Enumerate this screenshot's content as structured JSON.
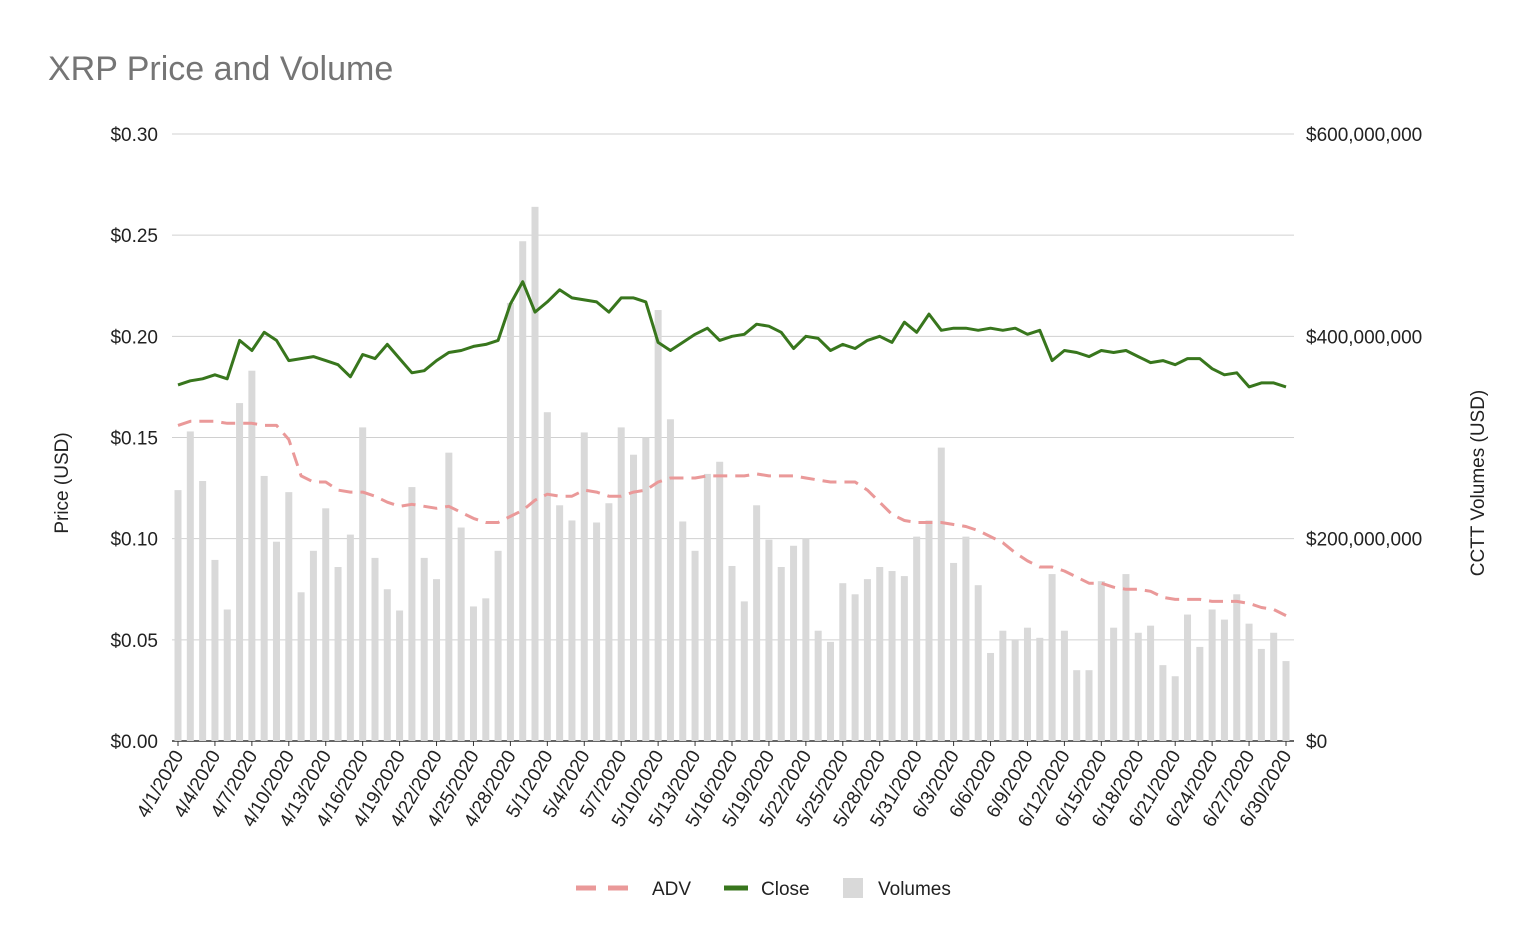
{
  "chart_data": {
    "type": "combo",
    "title": "XRP Price and Volume",
    "ylabel_left": "Price (USD)",
    "ylabel_right": "CCTT Volumes (USD)",
    "ylim_left": [
      0,
      0.3
    ],
    "ylim_right": [
      0,
      600000000
    ],
    "yticks_left": [
      "$0.00",
      "$0.05",
      "$0.10",
      "$0.15",
      "$0.20",
      "$0.25",
      "$0.30"
    ],
    "yticks_right": [
      "$0",
      "$200,000,000",
      "$400,000,000",
      "$600,000,000"
    ],
    "grid": true,
    "legend": "bottom",
    "colors": {
      "ADV": "#ea9999",
      "Close": "#38761d",
      "Volumes": "#d9d9d9"
    },
    "categories": [
      "4/1/2020",
      "4/2/2020",
      "4/3/2020",
      "4/4/2020",
      "4/5/2020",
      "4/6/2020",
      "4/7/2020",
      "4/8/2020",
      "4/9/2020",
      "4/10/2020",
      "4/11/2020",
      "4/12/2020",
      "4/13/2020",
      "4/14/2020",
      "4/15/2020",
      "4/16/2020",
      "4/17/2020",
      "4/18/2020",
      "4/19/2020",
      "4/20/2020",
      "4/21/2020",
      "4/22/2020",
      "4/23/2020",
      "4/24/2020",
      "4/25/2020",
      "4/26/2020",
      "4/27/2020",
      "4/28/2020",
      "4/29/2020",
      "4/30/2020",
      "5/1/2020",
      "5/2/2020",
      "5/3/2020",
      "5/4/2020",
      "5/5/2020",
      "5/6/2020",
      "5/7/2020",
      "5/8/2020",
      "5/9/2020",
      "5/10/2020",
      "5/11/2020",
      "5/12/2020",
      "5/13/2020",
      "5/14/2020",
      "5/15/2020",
      "5/16/2020",
      "5/17/2020",
      "5/18/2020",
      "5/19/2020",
      "5/20/2020",
      "5/21/2020",
      "5/22/2020",
      "5/23/2020",
      "5/24/2020",
      "5/25/2020",
      "5/26/2020",
      "5/27/2020",
      "5/28/2020",
      "5/29/2020",
      "5/30/2020",
      "5/31/2020",
      "6/1/2020",
      "6/2/2020",
      "6/3/2020",
      "6/4/2020",
      "6/5/2020",
      "6/6/2020",
      "6/7/2020",
      "6/8/2020",
      "6/9/2020",
      "6/10/2020",
      "6/11/2020",
      "6/12/2020",
      "6/13/2020",
      "6/14/2020",
      "6/15/2020",
      "6/16/2020",
      "6/17/2020",
      "6/18/2020",
      "6/19/2020",
      "6/20/2020",
      "6/21/2020",
      "6/22/2020",
      "6/23/2020",
      "6/24/2020",
      "6/25/2020",
      "6/26/2020",
      "6/27/2020",
      "6/28/2020",
      "6/29/2020",
      "6/30/2020"
    ],
    "series": [
      {
        "name": "Volumes",
        "type": "bar",
        "axis": "right",
        "values": [
          248000000,
          306000000,
          257000000,
          179000000,
          130000000,
          334000000,
          366000000,
          262000000,
          197000000,
          246000000,
          147000000,
          188000000,
          230000000,
          172000000,
          204000000,
          310000000,
          181000000,
          150000000,
          129000000,
          251000000,
          181000000,
          160000000,
          285000000,
          211000000,
          133000000,
          141000000,
          188000000,
          433000000,
          494000000,
          528000000,
          325000000,
          233000000,
          218000000,
          305000000,
          216000000,
          235000000,
          310000000,
          283000000,
          300000000,
          426000000,
          318000000,
          217000000,
          188000000,
          264000000,
          276000000,
          173000000,
          138000000,
          233000000,
          199000000,
          172000000,
          193000000,
          200000000,
          109000000,
          98000000,
          156000000,
          145000000,
          160000000,
          172000000,
          168000000,
          163000000,
          202000000,
          218000000,
          290000000,
          176000000,
          202000000,
          154000000,
          87000000,
          109000000,
          100000000,
          112000000,
          102000000,
          165000000,
          109000000,
          70000000,
          70000000,
          158000000,
          112000000,
          165000000,
          107000000,
          114000000,
          75000000,
          64000000,
          125000000,
          93000000,
          130000000,
          120000000,
          145000000,
          116000000,
          91000000,
          107000000,
          79000000
        ]
      },
      {
        "name": "ADV",
        "type": "line",
        "dash": true,
        "axis": "left",
        "values": [
          0.156,
          0.158,
          0.158,
          0.158,
          0.157,
          0.157,
          0.157,
          0.156,
          0.156,
          0.149,
          0.131,
          0.128,
          0.128,
          0.124,
          0.123,
          0.123,
          0.121,
          0.118,
          0.116,
          0.117,
          0.116,
          0.115,
          0.116,
          0.113,
          0.11,
          0.108,
          0.108,
          0.111,
          0.114,
          0.119,
          0.122,
          0.121,
          0.121,
          0.124,
          0.123,
          0.121,
          0.121,
          0.123,
          0.124,
          0.128,
          0.13,
          0.13,
          0.13,
          0.131,
          0.131,
          0.131,
          0.131,
          0.132,
          0.131,
          0.131,
          0.131,
          0.13,
          0.129,
          0.128,
          0.128,
          0.128,
          0.124,
          0.118,
          0.112,
          0.109,
          0.108,
          0.108,
          0.108,
          0.107,
          0.106,
          0.104,
          0.101,
          0.098,
          0.093,
          0.089,
          0.086,
          0.086,
          0.084,
          0.081,
          0.078,
          0.078,
          0.076,
          0.075,
          0.075,
          0.074,
          0.071,
          0.07,
          0.07,
          0.07,
          0.069,
          0.069,
          0.069,
          0.068,
          0.066,
          0.065,
          0.062
        ]
      },
      {
        "name": "Close",
        "type": "line",
        "axis": "left",
        "values": [
          0.176,
          0.178,
          0.179,
          0.181,
          0.179,
          0.198,
          0.193,
          0.202,
          0.198,
          0.188,
          0.189,
          0.19,
          0.188,
          0.186,
          0.18,
          0.191,
          0.189,
          0.196,
          0.189,
          0.182,
          0.183,
          0.188,
          0.192,
          0.193,
          0.195,
          0.196,
          0.198,
          0.216,
          0.227,
          0.212,
          0.217,
          0.223,
          0.219,
          0.218,
          0.217,
          0.212,
          0.219,
          0.219,
          0.217,
          0.197,
          0.193,
          0.197,
          0.201,
          0.204,
          0.198,
          0.2,
          0.201,
          0.206,
          0.205,
          0.202,
          0.194,
          0.2,
          0.199,
          0.193,
          0.196,
          0.194,
          0.198,
          0.2,
          0.197,
          0.207,
          0.202,
          0.211,
          0.203,
          0.204,
          0.204,
          0.203,
          0.204,
          0.203,
          0.204,
          0.201,
          0.203,
          0.188,
          0.193,
          0.192,
          0.19,
          0.193,
          0.192,
          0.193,
          0.19,
          0.187,
          0.188,
          0.186,
          0.189,
          0.189,
          0.184,
          0.181,
          0.182,
          0.175,
          0.177,
          0.177,
          0.175
        ]
      }
    ]
  }
}
